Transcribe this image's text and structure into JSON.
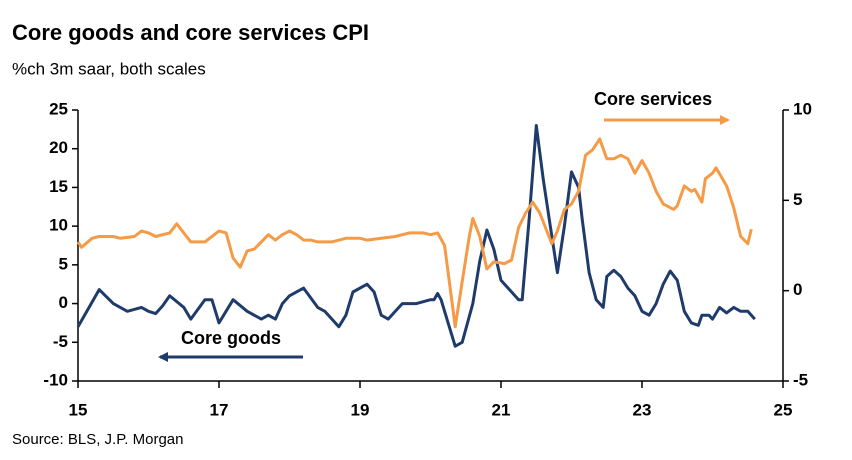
{
  "chart_data": {
    "type": "line",
    "title": "Core goods and core services CPI",
    "subtitle": "%ch 3m saar, both scales",
    "source": "Source: BLS, J.P. Morgan",
    "xlim": [
      15,
      25
    ],
    "xticks": [
      15,
      17,
      19,
      21,
      23,
      25
    ],
    "ylim": [
      -10,
      25
    ],
    "yticks": [
      -10,
      -5,
      0,
      5,
      10,
      15,
      20,
      25
    ],
    "y2lim": [
      -5,
      10
    ],
    "y2ticks": [
      -5,
      0,
      5,
      10
    ],
    "series": [
      {
        "name": "Core goods",
        "color": "#1f3b6b",
        "axis": "y",
        "x": [
          15.0,
          15.3,
          15.5,
          15.7,
          15.9,
          16.0,
          16.1,
          16.2,
          16.3,
          16.5,
          16.6,
          16.8,
          16.9,
          17.0,
          17.2,
          17.4,
          17.6,
          17.7,
          17.8,
          17.9,
          18.0,
          18.2,
          18.4,
          18.5,
          18.7,
          18.8,
          18.9,
          19.1,
          19.2,
          19.3,
          19.4,
          19.5,
          19.6,
          19.8,
          20.0,
          20.05,
          20.1,
          20.15,
          20.25,
          20.35,
          20.45,
          20.6,
          20.7,
          20.8,
          20.9,
          21.0,
          21.15,
          21.25,
          21.3,
          21.4,
          21.5,
          21.6,
          21.7,
          21.8,
          21.9,
          22.0,
          22.1,
          22.15,
          22.25,
          22.35,
          22.45,
          22.5,
          22.6,
          22.7,
          22.8,
          22.9,
          23.0,
          23.1,
          23.2,
          23.3,
          23.4,
          23.5,
          23.6,
          23.7,
          23.8,
          23.85,
          23.95,
          24.0,
          24.1,
          24.2,
          24.3,
          24.4,
          24.5,
          24.6
        ],
        "values": [
          -3,
          1.8,
          0,
          -1,
          -0.5,
          -1,
          -1.3,
          -0.3,
          1,
          -0.5,
          -2,
          0.5,
          0.5,
          -2.5,
          0.5,
          -1,
          -2,
          -1.5,
          -2,
          0,
          1,
          2,
          -0.5,
          -1,
          -3,
          -1.5,
          1.5,
          2.5,
          1.5,
          -1.5,
          -2,
          -1,
          0,
          0,
          0.5,
          0.5,
          1.3,
          0.5,
          -2.5,
          -5.5,
          -5,
          0,
          5.5,
          9.5,
          7,
          3,
          1.5,
          0.5,
          0.5,
          11,
          23,
          16,
          10,
          4,
          10,
          17,
          15,
          11,
          4,
          0.5,
          -0.5,
          3.5,
          4.3,
          3.5,
          2,
          1,
          -1,
          -1.5,
          0,
          2.5,
          4.2,
          3,
          -1,
          -2.5,
          -2.8,
          -1.5,
          -1.5,
          -2,
          -0.5,
          -1.2,
          -0.5,
          -1,
          -1,
          -2
        ]
      },
      {
        "name": "Core services",
        "color": "#f59b47",
        "axis": "y2",
        "x": [
          15.0,
          15.05,
          15.2,
          15.3,
          15.5,
          15.6,
          15.8,
          15.9,
          16.0,
          16.1,
          16.3,
          16.4,
          16.5,
          16.6,
          16.8,
          16.9,
          17.0,
          17.1,
          17.2,
          17.3,
          17.4,
          17.5,
          17.6,
          17.7,
          17.8,
          17.9,
          18.0,
          18.1,
          18.2,
          18.3,
          18.4,
          18.6,
          18.8,
          19.0,
          19.1,
          19.3,
          19.5,
          19.7,
          19.9,
          20.0,
          20.1,
          20.2,
          20.3,
          20.35,
          20.45,
          20.55,
          20.6,
          20.7,
          20.8,
          20.9,
          21.05,
          21.15,
          21.25,
          21.35,
          21.45,
          21.55,
          21.65,
          21.72,
          21.8,
          21.9,
          22.0,
          22.1,
          22.15,
          22.2,
          22.3,
          22.4,
          22.5,
          22.6,
          22.7,
          22.8,
          22.9,
          23.0,
          23.1,
          23.2,
          23.3,
          23.45,
          23.5,
          23.6,
          23.7,
          23.75,
          23.85,
          23.9,
          24.0,
          24.05,
          24.2,
          24.3,
          24.4,
          24.5,
          24.55
        ],
        "values": [
          2.7,
          2.4,
          2.9,
          3.0,
          3.0,
          2.9,
          3.0,
          3.3,
          3.2,
          3.0,
          3.2,
          3.7,
          3.2,
          2.7,
          2.7,
          3.0,
          3.3,
          3.2,
          1.8,
          1.3,
          2.2,
          2.3,
          2.7,
          3.1,
          2.8,
          3.1,
          3.3,
          3.1,
          2.8,
          2.8,
          2.7,
          2.7,
          2.9,
          2.9,
          2.8,
          2.9,
          3.0,
          3.2,
          3.2,
          3.1,
          3.2,
          2.5,
          -0.5,
          -2.0,
          0.5,
          3.0,
          4.0,
          3.0,
          1.2,
          1.6,
          1.5,
          1.7,
          3.5,
          4.3,
          4.9,
          4.3,
          3.3,
          2.6,
          3.3,
          4.5,
          4.8,
          5.5,
          6.5,
          7.5,
          7.8,
          8.4,
          7.3,
          7.3,
          7.5,
          7.3,
          6.5,
          7.2,
          6.5,
          5.5,
          4.8,
          4.5,
          4.7,
          5.8,
          5.5,
          5.6,
          4.9,
          6.2,
          6.5,
          6.8,
          5.8,
          4.6,
          3.0,
          2.6,
          3.4
        ]
      }
    ]
  }
}
